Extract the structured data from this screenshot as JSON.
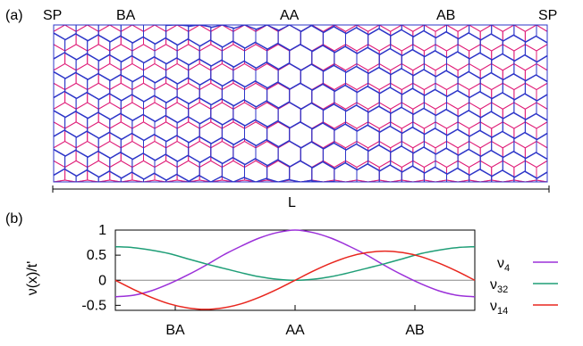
{
  "panel_a": {
    "label": "(a)",
    "region_labels": [
      "SP",
      "BA",
      "AA",
      "AB",
      "SP"
    ],
    "length_label": "L",
    "colors": {
      "layer1": "#e0207a",
      "layer2": "#2c35c8"
    }
  },
  "panel_b": {
    "label": "(b)",
    "ylabel": "ν(x)/t'",
    "yticks": [
      "1",
      "0.5",
      "0",
      "-0.5"
    ],
    "xticks": [
      "BA",
      "AA",
      "AB"
    ]
  },
  "chart_data": {
    "type": "line",
    "title": "",
    "xlabel": "",
    "ylabel": "ν(x)/t'",
    "xlim": [
      0,
      1
    ],
    "ylim": [
      -0.6,
      1.0
    ],
    "x_tick_labels": [
      "BA",
      "AA",
      "AB"
    ],
    "x_tick_positions": [
      0.1667,
      0.5,
      0.8333
    ],
    "y_tick_values": [
      1,
      0.5,
      0,
      -0.5
    ],
    "legend": "right",
    "series": [
      {
        "name": "ν4",
        "color": "#9b30d9",
        "x": [
          0,
          0.05,
          0.1,
          0.15,
          0.2,
          0.25,
          0.3,
          0.35,
          0.4,
          0.45,
          0.5,
          0.55,
          0.6,
          0.65,
          0.7,
          0.75,
          0.8,
          0.85,
          0.9,
          0.95,
          1
        ],
        "values": [
          -0.33,
          -0.3,
          -0.21,
          -0.07,
          0.1,
          0.29,
          0.5,
          0.68,
          0.84,
          0.95,
          1.0,
          0.95,
          0.84,
          0.68,
          0.5,
          0.29,
          0.1,
          -0.07,
          -0.21,
          -0.3,
          -0.33
        ]
      },
      {
        "name": "ν32",
        "color": "#1f9e77",
        "x": [
          0,
          0.05,
          0.1,
          0.15,
          0.2,
          0.25,
          0.3,
          0.35,
          0.4,
          0.45,
          0.5,
          0.55,
          0.6,
          0.65,
          0.7,
          0.75,
          0.8,
          0.85,
          0.9,
          0.95,
          1
        ],
        "values": [
          0.67,
          0.65,
          0.6,
          0.53,
          0.43,
          0.33,
          0.24,
          0.15,
          0.07,
          0.02,
          0.0,
          0.02,
          0.07,
          0.15,
          0.24,
          0.33,
          0.43,
          0.53,
          0.6,
          0.65,
          0.67
        ]
      },
      {
        "name": "ν14",
        "color": "#e8261e",
        "x": [
          0,
          0.05,
          0.1,
          0.15,
          0.2,
          0.25,
          0.3,
          0.35,
          0.4,
          0.45,
          0.5,
          0.55,
          0.6,
          0.65,
          0.7,
          0.75,
          0.8,
          0.85,
          0.9,
          0.95,
          1
        ],
        "values": [
          0.0,
          -0.18,
          -0.34,
          -0.47,
          -0.55,
          -0.58,
          -0.55,
          -0.47,
          -0.34,
          -0.18,
          0.0,
          0.18,
          0.34,
          0.47,
          0.55,
          0.58,
          0.55,
          0.47,
          0.34,
          0.18,
          0.0
        ]
      }
    ]
  }
}
